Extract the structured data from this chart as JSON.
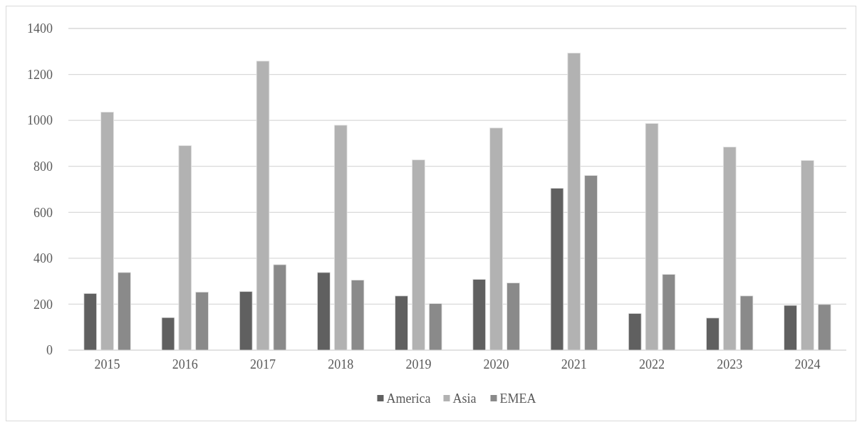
{
  "chart_data": {
    "type": "bar",
    "categories": [
      "2015",
      "2016",
      "2017",
      "2018",
      "2019",
      "2020",
      "2021",
      "2022",
      "2023",
      "2024"
    ],
    "series": [
      {
        "name": "America",
        "color": "#606060",
        "values": [
          247,
          142,
          255,
          338,
          236,
          308,
          705,
          160,
          140,
          195
        ]
      },
      {
        "name": "Asia",
        "color": "#b2b2b2",
        "values": [
          1036,
          890,
          1258,
          979,
          828,
          967,
          1293,
          987,
          884,
          826
        ]
      },
      {
        "name": "EMEA",
        "color": "#8a8a8a",
        "values": [
          338,
          253,
          372,
          305,
          203,
          293,
          760,
          330,
          236,
          199
        ]
      }
    ],
    "ylim": [
      0,
      1400
    ],
    "yticks": [
      0,
      200,
      400,
      600,
      800,
      1000,
      1200,
      1400
    ],
    "grid": "y",
    "legend": "bottom"
  }
}
